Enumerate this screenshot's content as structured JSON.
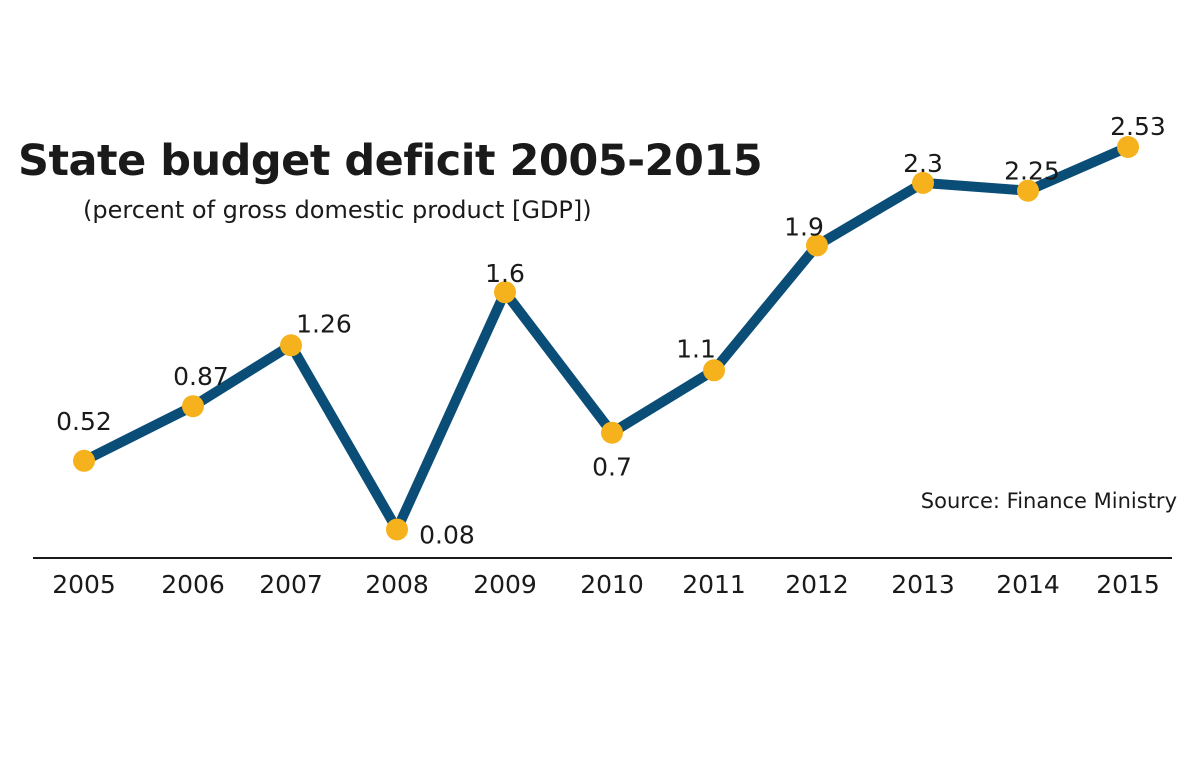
{
  "chart_data": {
    "type": "line",
    "title": "State budget deficit 2005-2015",
    "subtitle": "(percent of gross domestic product [GDP])",
    "source": "Source: Finance Ministry",
    "x": [
      "2005",
      "2006",
      "2007",
      "2008",
      "2009",
      "2010",
      "2011",
      "2012",
      "2013",
      "2014",
      "2015"
    ],
    "series": [
      {
        "values": [
          0.52,
          0.87,
          1.26,
          0.08,
          1.6,
          0.7,
          1.1,
          1.9,
          2.3,
          2.25,
          2.53
        ],
        "labels": [
          "0.52",
          "0.87",
          "1.26",
          "0.08",
          "1.6",
          "0.7",
          "1.1",
          "1.9",
          "2.3",
          "2.25",
          "2.53"
        ]
      }
    ],
    "ylim": [
      0,
      2.53
    ],
    "grid": false,
    "colors": {
      "line": "#0a4d77",
      "marker": "#f5b21c",
      "axis": "#1a1a1a",
      "text": "#1a1a1a"
    }
  }
}
